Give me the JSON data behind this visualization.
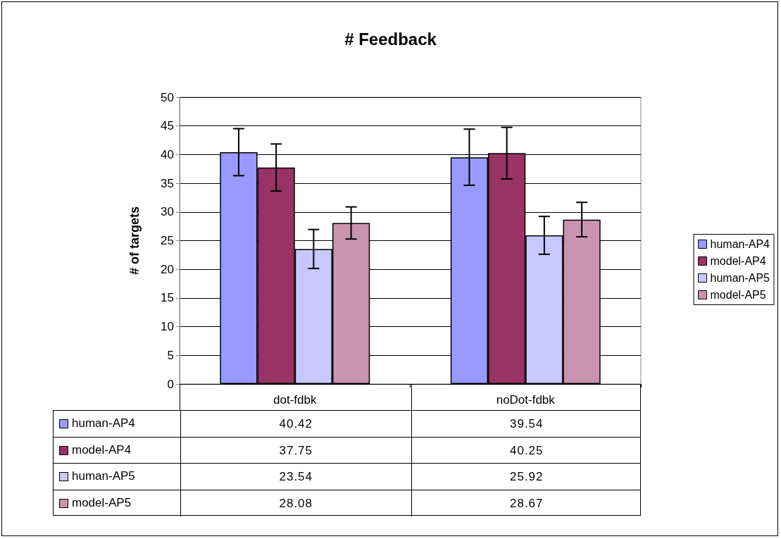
{
  "chart_data": {
    "type": "bar",
    "title": "# Feedback",
    "ylabel": "# of targets",
    "categories": [
      "dot-fdbk",
      "noDot-fdbk"
    ],
    "series": [
      {
        "name": "human-AP4",
        "color": "#9999ff",
        "values": [
          40.42,
          39.54
        ],
        "errors": [
          4.1,
          4.9
        ]
      },
      {
        "name": "model-AP4",
        "color": "#993366",
        "values": [
          37.75,
          40.25
        ],
        "errors": [
          4.1,
          4.5
        ]
      },
      {
        "name": "human-AP5",
        "color": "#c8c8ff",
        "values": [
          23.54,
          25.92
        ],
        "errors": [
          3.4,
          3.3
        ]
      },
      {
        "name": "model-AP5",
        "color": "#c994b0",
        "values": [
          28.08,
          28.67
        ],
        "errors": [
          2.8,
          3.0
        ]
      }
    ],
    "ylim": [
      0,
      50
    ],
    "yticks": [
      0,
      5,
      10,
      15,
      20,
      25,
      30,
      35,
      40,
      45,
      50
    ],
    "grid": "y",
    "legend": "right",
    "data_labels": true
  }
}
